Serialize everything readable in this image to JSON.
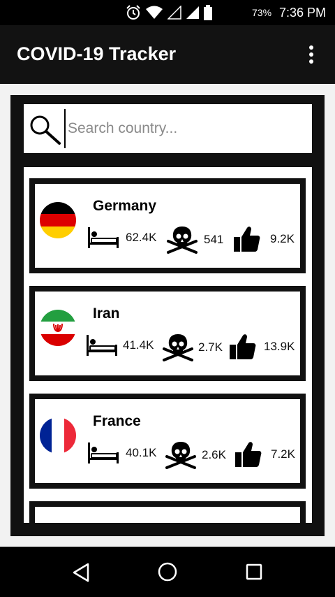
{
  "status_bar": {
    "battery": "73%",
    "time": "7:36 PM"
  },
  "app_bar": {
    "title": "COVID-19 Tracker"
  },
  "search": {
    "placeholder": "Search country..."
  },
  "countries": [
    {
      "name": "Germany",
      "cases": "62.4K",
      "deaths": "541",
      "recovered": "9.2K"
    },
    {
      "name": "Iran",
      "cases": "41.4K",
      "deaths": "2.7K",
      "recovered": "13.9K"
    },
    {
      "name": "France",
      "cases": "40.1K",
      "deaths": "2.6K",
      "recovered": "7.2K"
    }
  ],
  "icons": {
    "cases": "bed-icon",
    "deaths": "skull-crossbones-icon",
    "recovered": "thumbs-up-icon"
  }
}
